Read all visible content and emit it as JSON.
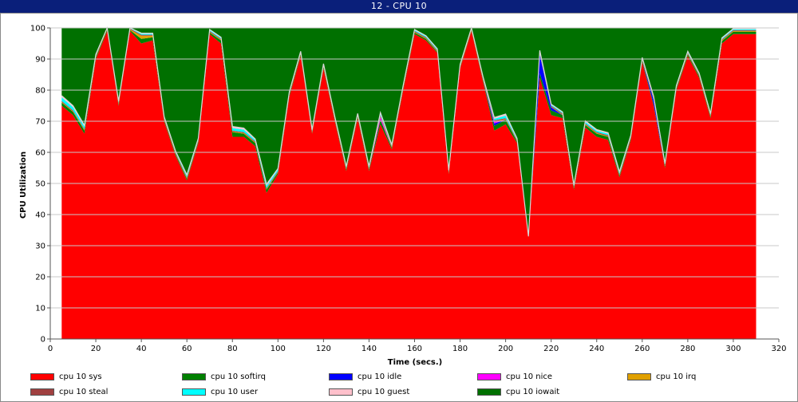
{
  "window": {
    "title": "12 - CPU 10"
  },
  "chart_data": {
    "type": "area",
    "title": "",
    "xlabel": "Time (secs.)",
    "ylabel": "CPU Utilization",
    "xlim": [
      0,
      320
    ],
    "ylim": [
      0,
      100
    ],
    "xticks": [
      0,
      20,
      40,
      60,
      80,
      100,
      120,
      140,
      160,
      180,
      200,
      220,
      240,
      260,
      280,
      300,
      320
    ],
    "yticks": [
      0,
      10,
      20,
      30,
      40,
      50,
      60,
      70,
      80,
      90,
      100
    ],
    "grid": "horizontal",
    "stacked": true,
    "legend_position": "bottom",
    "x": [
      5,
      10,
      15,
      20,
      25,
      30,
      35,
      40,
      45,
      50,
      55,
      60,
      65,
      70,
      75,
      80,
      85,
      90,
      95,
      100,
      105,
      110,
      115,
      120,
      125,
      130,
      135,
      140,
      145,
      150,
      155,
      160,
      165,
      170,
      175,
      180,
      185,
      190,
      195,
      200,
      205,
      210,
      215,
      220,
      225,
      230,
      235,
      240,
      245,
      250,
      255,
      260,
      265,
      270,
      275,
      280,
      285,
      290,
      295,
      300,
      305,
      310
    ],
    "series": [
      {
        "name": "cpu 10 sys",
        "color": "#ff0000",
        "values": [
          75,
          72,
          66,
          90,
          99,
          75,
          99,
          95,
          96,
          70,
          59,
          51,
          63,
          98,
          95,
          65,
          65,
          62,
          47,
          53,
          78,
          91,
          66,
          87,
          70,
          54,
          71,
          54,
          69,
          61,
          80,
          98,
          96,
          92,
          53,
          87,
          99,
          83,
          67,
          69,
          63,
          33,
          84,
          72,
          71,
          48,
          68,
          65,
          64,
          52,
          64,
          89,
          75,
          55,
          80,
          91,
          84,
          71,
          95,
          98,
          98,
          98
        ]
      },
      {
        "name": "cpu 10 softirq",
        "color": "#008000",
        "values": [
          1,
          1,
          1,
          0.5,
          0.5,
          0.5,
          0.3,
          1.5,
          1,
          0.5,
          0.5,
          0.5,
          0.5,
          0.5,
          1,
          1.5,
          1,
          1,
          1,
          0.5,
          0.5,
          0.5,
          0.3,
          0.5,
          0.5,
          0.5,
          0.5,
          0.5,
          1.5,
          0.5,
          0.5,
          0.5,
          0.5,
          0.3,
          0.3,
          0.3,
          0.3,
          0.5,
          1.5,
          1.5,
          0.5,
          0,
          1.5,
          1.5,
          1,
          0.5,
          0.8,
          1,
          1,
          0.5,
          0.5,
          0.5,
          0.5,
          0.5,
          0.5,
          0.5,
          0.5,
          0.5,
          0.8,
          0.8,
          0.8,
          0.8
        ]
      },
      {
        "name": "cpu 10 idle",
        "color": "#0000ff",
        "values": [
          0,
          0,
          0,
          0,
          0,
          0,
          0,
          0,
          0,
          0,
          0,
          0,
          0,
          0,
          0,
          0,
          0,
          0,
          0,
          0,
          0,
          0,
          0,
          0,
          0,
          0,
          0,
          0,
          0,
          0,
          0,
          0,
          0,
          0,
          0,
          0,
          0,
          0,
          0.8,
          0,
          0,
          0,
          6,
          1,
          0,
          0,
          0,
          0,
          0,
          0,
          0,
          0,
          1.5,
          0,
          0,
          0,
          0,
          0,
          0,
          0,
          0,
          0
        ]
      },
      {
        "name": "cpu 10 nice",
        "color": "#ff00ff",
        "values": [
          0,
          0,
          0,
          0,
          0,
          0,
          0,
          0,
          0,
          0,
          0,
          0,
          0,
          0,
          0,
          0,
          0,
          0,
          0,
          0,
          0,
          0,
          0,
          0,
          0,
          0,
          0,
          0,
          1,
          0,
          0,
          0,
          0,
          0,
          0,
          0,
          0,
          0,
          0.5,
          0,
          0,
          0,
          0,
          0,
          0,
          0,
          0,
          0,
          0,
          0,
          0,
          0,
          0,
          0,
          0,
          0,
          0,
          0,
          0,
          0,
          0,
          0
        ]
      },
      {
        "name": "cpu 10 irq",
        "color": "#e0a000",
        "values": [
          0.2,
          0.2,
          0.2,
          0.2,
          0.2,
          0.2,
          0.2,
          1,
          0.5,
          0.2,
          0.2,
          0.2,
          0.2,
          0.2,
          0.2,
          0.2,
          0.2,
          0.2,
          0.2,
          0.2,
          0.2,
          0.2,
          0.2,
          0.2,
          0.2,
          0.2,
          0.2,
          0.2,
          0.2,
          0.2,
          0.2,
          0.2,
          0.2,
          0.2,
          0.2,
          0.2,
          0.2,
          0.2,
          0.2,
          0.2,
          0.2,
          0,
          0.2,
          0.2,
          0.2,
          0.2,
          0.2,
          0.2,
          0.2,
          0.2,
          0.2,
          0.2,
          0.2,
          0.2,
          0.2,
          0.2,
          0.2,
          0.2,
          0.2,
          0.2,
          0.2,
          0.2
        ]
      },
      {
        "name": "cpu 10 steal",
        "color": "#a04040",
        "values": [
          0.3,
          0.3,
          0.3,
          0.3,
          0.3,
          0.3,
          0.3,
          0.3,
          0.3,
          0.3,
          0.3,
          0.3,
          0.3,
          0.3,
          0.3,
          0.3,
          0.3,
          0.3,
          0.3,
          0.3,
          0.3,
          0.3,
          0.3,
          0.3,
          0.3,
          0.3,
          0.3,
          0.3,
          0.3,
          0.3,
          0.3,
          0.3,
          0.3,
          0.3,
          0.3,
          0.3,
          0.3,
          0.3,
          0.3,
          0.3,
          0.3,
          0,
          0.3,
          0.3,
          0.3,
          0.3,
          0.3,
          0.3,
          0.3,
          0.3,
          0.3,
          0.3,
          0.3,
          0.3,
          0.3,
          0.3,
          0.3,
          0.3,
          0.3,
          0.3,
          0.3,
          0.3
        ]
      },
      {
        "name": "cpu 10 user",
        "color": "#00ffff",
        "values": [
          1.2,
          1,
          0.8,
          0.3,
          0.2,
          0.3,
          0.2,
          0.3,
          0.3,
          0.3,
          0.3,
          0.5,
          0.3,
          0.3,
          0.3,
          0.8,
          0.8,
          0.5,
          0.8,
          0.5,
          0.3,
          0.3,
          0.3,
          0.3,
          0.3,
          0.3,
          0.3,
          0.3,
          0.5,
          0.3,
          0.3,
          0.3,
          0.3,
          0.3,
          0.3,
          0.3,
          0.2,
          0.3,
          0.5,
          0.8,
          0.3,
          0,
          0.5,
          0.3,
          0.3,
          0.3,
          0.5,
          0.5,
          0.5,
          0.5,
          0.3,
          0.3,
          0.3,
          0.3,
          0.3,
          0.3,
          0.3,
          0.3,
          0.3,
          0.3,
          0.3,
          0.3
        ]
      },
      {
        "name": "cpu 10 guest",
        "color": "#ffc0cb",
        "values": [
          0.5,
          0.5,
          0.4,
          0.2,
          0.2,
          0.2,
          0.2,
          0.2,
          0.2,
          0.2,
          0.2,
          0.3,
          0.2,
          0.2,
          0.2,
          0.5,
          0.5,
          0.3,
          0.5,
          0.3,
          0.2,
          0.2,
          0.2,
          0.2,
          0.2,
          0.2,
          0.2,
          0.2,
          0.3,
          0.2,
          0.2,
          0.2,
          0.2,
          0.2,
          0.2,
          0.2,
          0.2,
          0.2,
          0.4,
          0.5,
          0.2,
          0,
          0.3,
          0.2,
          0.2,
          0.2,
          0.3,
          0.3,
          0.3,
          0.3,
          0.2,
          0.2,
          0.2,
          0.2,
          0.2,
          0.2,
          0.2,
          0.2,
          0.2,
          0.2,
          0.2,
          0.2
        ]
      },
      {
        "name": "cpu 10 iowait",
        "color": "#007000",
        "values": [
          22.8,
          25,
          32.3,
          9,
          0,
          24,
          0,
          1.7,
          1.7,
          29.3,
          40,
          48.2,
          36,
          0.8,
          3.3,
          32.2,
          33,
          37.5,
          51.2,
          46,
          21,
          8,
          33,
          12,
          29,
          45,
          28,
          45,
          28.2,
          38,
          19,
          1,
          3,
          7,
          46,
          12,
          0,
          16,
          29,
          28,
          36,
          67,
          7.2,
          25.5,
          27,
          51,
          30,
          33,
          34,
          47,
          35,
          10,
          23,
          44,
          19,
          8,
          15,
          28,
          3.5,
          0.5,
          0.5,
          0.5
        ]
      }
    ]
  }
}
